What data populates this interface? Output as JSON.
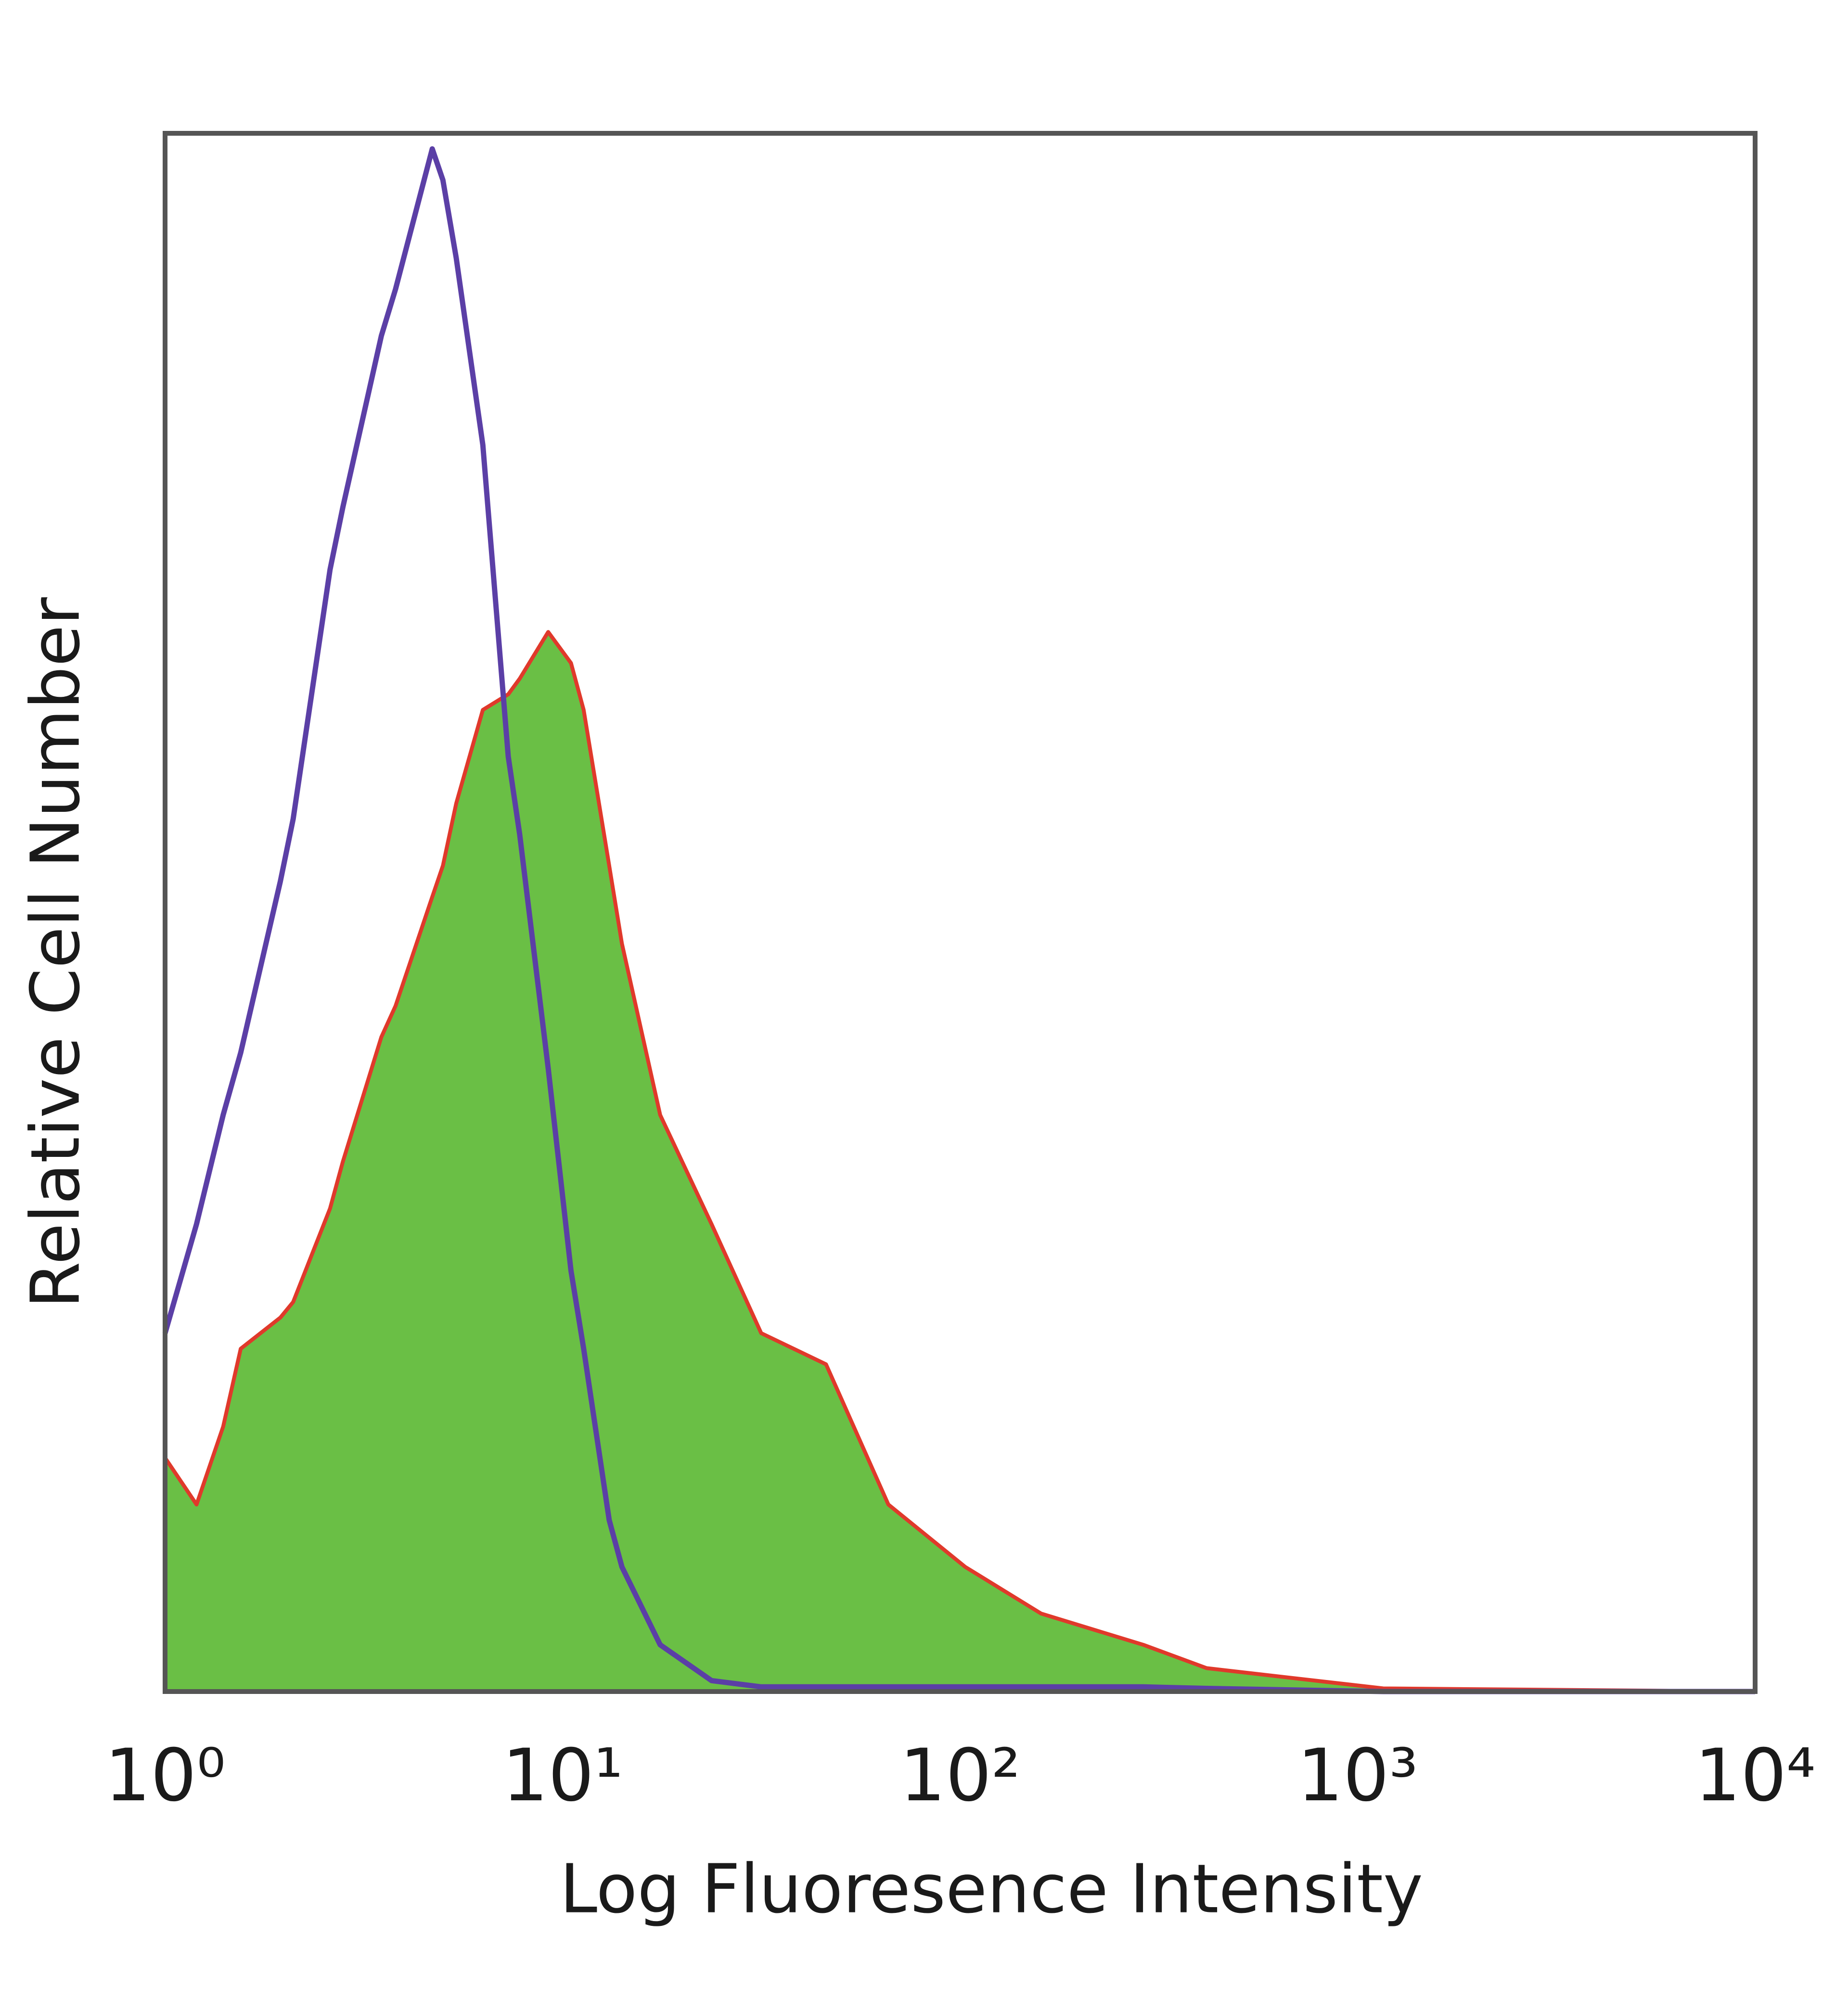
{
  "chart_data": {
    "type": "area",
    "xlabel": "Log Fluoresence Intensity",
    "ylabel": "Relative Cell Number",
    "xscale": "log",
    "xlim": [
      1,
      10000
    ],
    "ylim": [
      0,
      100
    ],
    "xticks": [
      {
        "value": 1,
        "label": "10⁰"
      },
      {
        "value": 10,
        "label": "10¹"
      },
      {
        "value": 100,
        "label": "10²"
      },
      {
        "value": 1000,
        "label": "10³"
      },
      {
        "value": 10000,
        "label": "10⁴"
      }
    ],
    "x": [
      1,
      1.2,
      1.4,
      1.55,
      1.95,
      2.1,
      2.6,
      2.8,
      3.5,
      3.8,
      4.7,
      5,
      5.4,
      6.3,
      7.3,
      7.8,
      9.2,
      10.5,
      11.3,
      13.1,
      14.1,
      17.6,
      23.7,
      31.6,
      46,
      66,
      103,
      160,
      289,
      417,
      1160,
      10000
    ],
    "series": [
      {
        "color": "#6abf45",
        "edge_color": "#e0392b",
        "filled": true,
        "values": [
          15,
          12,
          17,
          22,
          24,
          25,
          31,
          34,
          42,
          44,
          51,
          53,
          57,
          63,
          64,
          65,
          68,
          66,
          63,
          53,
          48,
          37,
          30,
          23,
          21,
          12,
          8,
          5,
          3,
          1.5,
          0.2,
          0
        ]
      },
      {
        "color": "#5b3fa6",
        "filled": false,
        "values": [
          23,
          30,
          37,
          41,
          52,
          56,
          72,
          76,
          87,
          90,
          99,
          97,
          92,
          80,
          60,
          55,
          40,
          27,
          22,
          11,
          8,
          3,
          0.7,
          0.3,
          0.3,
          0.3,
          0.3,
          0.3,
          0.3,
          0.2,
          0,
          0
        ]
      }
    ],
    "frame_color": "#555555"
  }
}
